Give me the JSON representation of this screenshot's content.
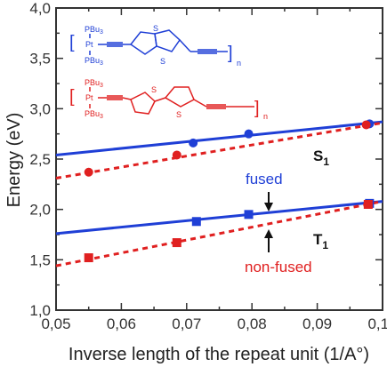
{
  "chart_data": {
    "type": "scatter",
    "xlabel": "Inverse length of the repeat unit (1/A°)",
    "ylabel": "Energy (eV)",
    "xlim": [
      0.05,
      0.1
    ],
    "ylim": [
      1.0,
      4.0
    ],
    "xticks": [
      "0,05",
      "0,06",
      "0,07",
      "0,08",
      "0,09",
      "0,10"
    ],
    "yticks": [
      "1,0",
      "1,5",
      "2,0",
      "2,5",
      "3,0",
      "3,5",
      "4,0"
    ],
    "grid": false,
    "series": [
      {
        "name": "S1 fused",
        "color": "#1f3fd6",
        "marker": "circle",
        "line": "solid",
        "points": [
          [
            0.071,
            2.66
          ],
          [
            0.0795,
            2.75
          ],
          [
            0.098,
            2.85
          ]
        ],
        "fit": [
          [
            0.05,
            2.54
          ],
          [
            0.1,
            2.87
          ]
        ]
      },
      {
        "name": "S1 non-fused",
        "color": "#e02020",
        "marker": "circle",
        "line": "dashed",
        "points": [
          [
            0.055,
            2.37
          ],
          [
            0.0685,
            2.54
          ],
          [
            0.0975,
            2.84
          ]
        ],
        "fit": [
          [
            0.05,
            2.31
          ],
          [
            0.1,
            2.86
          ]
        ]
      },
      {
        "name": "T1 fused",
        "color": "#1f3fd6",
        "marker": "square",
        "line": "solid",
        "points": [
          [
            0.0715,
            1.88
          ],
          [
            0.0795,
            1.95
          ],
          [
            0.098,
            2.06
          ]
        ],
        "fit": [
          [
            0.05,
            1.76
          ],
          [
            0.1,
            2.08
          ]
        ]
      },
      {
        "name": "T1 non-fused",
        "color": "#e02020",
        "marker": "square",
        "line": "dashed",
        "points": [
          [
            0.055,
            1.52
          ],
          [
            0.0685,
            1.67
          ],
          [
            0.0978,
            2.05
          ]
        ],
        "fit": [
          [
            0.05,
            1.44
          ],
          [
            0.1,
            2.08
          ]
        ]
      }
    ],
    "annotations": {
      "s1": "S",
      "s1_sub": "1",
      "t1": "T",
      "t1_sub": "1",
      "fused": "fused",
      "non_fused": "non-fused"
    }
  },
  "structures": {
    "fused": {
      "color": "#1f3fd6",
      "pbu3_top": "PBu",
      "pbu3_bottom": "PBu",
      "sub3": "3",
      "pt": "Pt",
      "s_top": "S",
      "s_bottom": "S",
      "n": "n",
      "bracket_open": "[",
      "bracket_close": "]"
    },
    "nonfused": {
      "color": "#e02020",
      "pbu3_top": "PBu",
      "pbu3_bottom": "PBu",
      "sub3": "3",
      "pt": "Pt",
      "s_left": "S",
      "s_right": "S",
      "n": "n",
      "bracket_open": "[",
      "bracket_close": "]"
    }
  }
}
